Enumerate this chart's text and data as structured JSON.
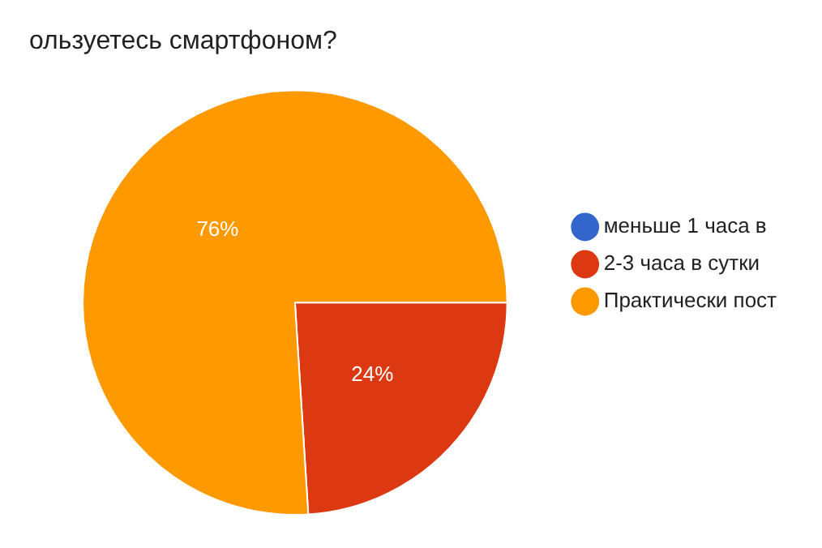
{
  "chart_data": {
    "type": "pie",
    "title": "ользуетесь смартфоном?",
    "categories": [
      "меньше 1 часа в",
      "2-3 часа в сутки",
      "Практически пост"
    ],
    "values": [
      0,
      24,
      76
    ],
    "colors": [
      "#3366cc",
      "#dc3912",
      "#ff9900"
    ],
    "value_labels": [
      null,
      "24%",
      "76%"
    ],
    "legend": "right"
  }
}
